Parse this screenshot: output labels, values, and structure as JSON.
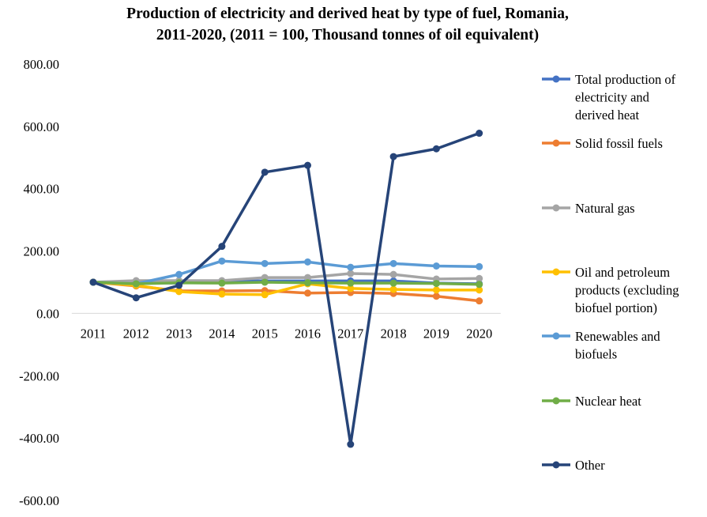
{
  "chart_data": {
    "type": "line",
    "title_line1": "Production of electricity and derived heat by type of fuel, Romania,",
    "title_line2": "2011-2020, (2011 = 100, Thousand tonnes of oil equivalent)",
    "categories": [
      "2011",
      "2012",
      "2013",
      "2014",
      "2015",
      "2016",
      "2017",
      "2018",
      "2019",
      "2020"
    ],
    "ylim": [
      -600,
      800
    ],
    "yticks": [
      -600,
      -400,
      -200,
      0,
      200,
      400,
      600,
      800
    ],
    "ytick_labels": [
      "-600.00",
      "-400.00",
      "-200.00",
      "0.00",
      "200.00",
      "400.00",
      "600.00",
      "800.00"
    ],
    "grid": false,
    "legend_position": "right",
    "series": [
      {
        "name": "Total production of electricity and derived heat",
        "legend_lines": [
          "Total production of",
          "electricity and",
          "derived heat"
        ],
        "color": "#4472C4",
        "values": [
          100,
          98,
          97,
          104,
          104,
          104,
          104,
          104,
          97,
          95
        ]
      },
      {
        "name": "Solid fossil fuels",
        "legend_lines": [
          "Solid fossil fuels"
        ],
        "color": "#ED7D31",
        "values": [
          100,
          88,
          72,
          72,
          73,
          65,
          67,
          64,
          55,
          40
        ]
      },
      {
        "name": "Natural gas",
        "legend_lines": [
          "Natural gas"
        ],
        "color": "#A5A5A5",
        "values": [
          100,
          105,
          105,
          105,
          115,
          115,
          128,
          125,
          110,
          112
        ]
      },
      {
        "name": "Oil and petroleum products (excluding biofuel portion)",
        "legend_lines": [
          "Oil and petroleum",
          "products (excluding",
          "biofuel portion)"
        ],
        "color": "#FFC000",
        "values": [
          100,
          90,
          70,
          62,
          60,
          95,
          80,
          77,
          75,
          75
        ]
      },
      {
        "name": "Renewables and biofuels",
        "legend_lines": [
          "Renewables and",
          "biofuels"
        ],
        "color": "#5B9BD5",
        "values": [
          100,
          95,
          125,
          168,
          160,
          165,
          148,
          160,
          152,
          150
        ]
      },
      {
        "name": "Nuclear heat",
        "legend_lines": [
          "Nuclear heat"
        ],
        "color": "#70AD47",
        "values": [
          100,
          95,
          98,
          97,
          100,
          98,
          97,
          97,
          96,
          93
        ]
      },
      {
        "name": "Other",
        "legend_lines": [
          "Other"
        ],
        "color": "#264478",
        "values": [
          100,
          50,
          90,
          215,
          453,
          475,
          -420,
          503,
          528,
          578
        ]
      }
    ]
  }
}
